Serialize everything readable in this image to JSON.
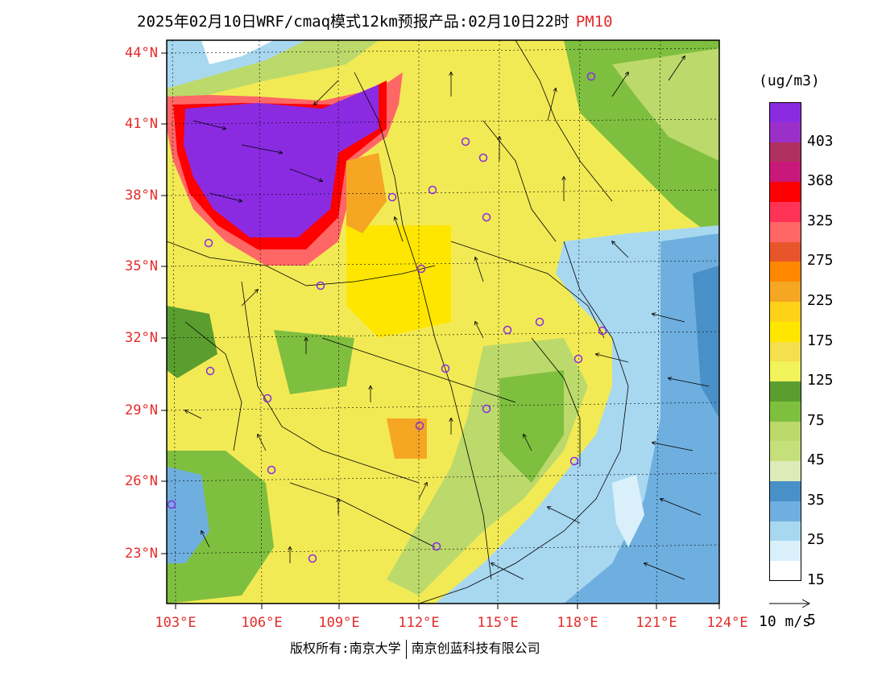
{
  "title": {
    "text": "2025年02月10日WRF/cmaq模式12km预报产品:02月10日22时",
    "pollutant": "PM10"
  },
  "map": {
    "lat_labels": [
      "44°N",
      "41°N",
      "38°N",
      "35°N",
      "32°N",
      "29°N",
      "26°N",
      "23°N"
    ],
    "lon_labels": [
      "103°E",
      "106°E",
      "109°E",
      "112°E",
      "115°E",
      "118°E",
      "121°E",
      "124°E"
    ]
  },
  "colorbar": {
    "unit": "(ug/m3)",
    "labels": [
      "403",
      "368",
      "325",
      "275",
      "225",
      "175",
      "125",
      "75",
      "45",
      "35",
      "25",
      "15",
      "5"
    ],
    "colors": [
      "#8a2be2",
      "#9b30c8",
      "#b03060",
      "#c8187a",
      "#ff0000",
      "#ff3355",
      "#ff6666",
      "#e8552a",
      "#ff8800",
      "#f5a623",
      "#ffd21a",
      "#ffe600",
      "#f5df4d",
      "#f2f25a",
      "#5a9e2f",
      "#7fbf3f",
      "#bcd96b",
      "#c5e07a",
      "#dcebb8",
      "#4a90c8",
      "#6fafdf",
      "#a8d8f0",
      "#d9f0fb",
      "#ffffff"
    ]
  },
  "wind_reference": {
    "label": "10 m/s"
  },
  "footer": {
    "left": "版权所有:南京大学",
    "right": "南京创蓝科技有限公司"
  }
}
